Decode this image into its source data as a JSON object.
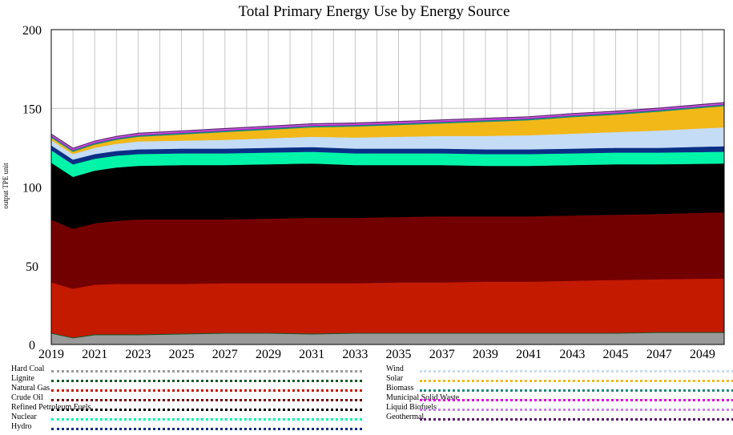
{
  "chart_data": {
    "type": "area",
    "stacked": true,
    "title": "Total Primary Energy Use by Energy Source",
    "ylabel": "output TPE unit",
    "xlabel": "",
    "ylim": [
      0,
      200
    ],
    "yticks": [
      0,
      50,
      100,
      150,
      200
    ],
    "xlim": [
      2019,
      2050
    ],
    "xticks": [
      2019,
      2021,
      2023,
      2025,
      2027,
      2029,
      2031,
      2033,
      2035,
      2037,
      2039,
      2041,
      2043,
      2045,
      2047,
      2049
    ],
    "grid": true,
    "x": [
      2019,
      2020,
      2021,
      2022,
      2023,
      2025,
      2027,
      2029,
      2031,
      2033,
      2035,
      2037,
      2039,
      2041,
      2043,
      2045,
      2047,
      2050
    ],
    "series": [
      {
        "name": "Hard Coal",
        "color": "#9a9a9a",
        "values": [
          7,
          4,
          6,
          6,
          6,
          6.5,
          7,
          7,
          6.5,
          7,
          7,
          7,
          7,
          7,
          7,
          7,
          7.5,
          7.5
        ]
      },
      {
        "name": "Lignite",
        "color": "#0c5a2a",
        "values": [
          0.5,
          0.5,
          0.5,
          0.5,
          0.5,
          0.5,
          0.5,
          0.5,
          0.5,
          0.5,
          0.5,
          0.5,
          0.5,
          0.5,
          0.5,
          0.5,
          0.5,
          0.5
        ]
      },
      {
        "name": "Natural Gas",
        "color": "#c41a00",
        "values": [
          32,
          31,
          31.5,
          32,
          32,
          31.5,
          31.5,
          31.5,
          32,
          31.5,
          32,
          32,
          32.5,
          32.5,
          33,
          33.5,
          33.5,
          34
        ]
      },
      {
        "name": "Crude Oil",
        "color": "#730000",
        "values": [
          40,
          38,
          39,
          40,
          41,
          41,
          40.5,
          41,
          41.5,
          41.5,
          41.5,
          42,
          41.5,
          41.5,
          41.5,
          41.5,
          41.5,
          42
        ]
      },
      {
        "name": "Refined Petroleum Fuels",
        "color": "#000000",
        "values": [
          36,
          33,
          33.5,
          34,
          34,
          34.5,
          34.5,
          34.5,
          34.5,
          33.5,
          33,
          32.5,
          32,
          32,
          32,
          32,
          31.5,
          31
        ]
      },
      {
        "name": "Nuclear",
        "color": "#00f5a8",
        "values": [
          8,
          8,
          7.5,
          7.5,
          7.5,
          7.5,
          7.5,
          7.5,
          7.5,
          7.5,
          7.5,
          7.5,
          7.5,
          7.5,
          7.5,
          7.5,
          7.5,
          7.5
        ]
      },
      {
        "name": "Hydro",
        "color": "#0a2f85",
        "values": [
          3,
          3,
          3,
          3,
          3,
          3,
          3,
          3,
          3,
          3,
          3,
          3,
          3,
          3,
          3,
          3,
          3,
          3.5
        ]
      },
      {
        "name": "Wind",
        "color": "#c4dcf6",
        "values": [
          3.5,
          3.5,
          4,
          4.5,
          5,
          5,
          5.5,
          6,
          6.5,
          7,
          7.5,
          8,
          8.5,
          9,
          9.5,
          10,
          11,
          12
        ]
      },
      {
        "name": "Solar",
        "color": "#f2b818",
        "values": [
          1.5,
          1.5,
          2,
          2.5,
          3,
          4,
          5,
          5.5,
          6,
          7,
          7.5,
          8,
          9,
          9.5,
          10.5,
          11,
          12,
          13.5
        ]
      },
      {
        "name": "Biomass",
        "color": "#1a8a7a",
        "values": [
          1,
          1,
          1,
          1,
          1,
          1,
          1,
          1,
          1,
          1,
          1,
          1,
          1,
          1,
          1,
          1,
          1,
          1
        ]
      },
      {
        "name": "Municipal Solid Waste",
        "color": "#e000e0",
        "values": [
          0.5,
          0.5,
          0.5,
          0.5,
          0.5,
          0.5,
          0.5,
          0.5,
          0.5,
          0.5,
          0.5,
          0.5,
          0.5,
          0.5,
          0.5,
          0.5,
          0.5,
          0.5
        ]
      },
      {
        "name": "Liquid Biofuels",
        "color": "#c080e0",
        "values": [
          0.5,
          0.5,
          0.5,
          0.5,
          0.5,
          0.5,
          0.5,
          0.5,
          0.5,
          0.5,
          0.5,
          0.5,
          0.5,
          0.5,
          0.5,
          0.5,
          0.5,
          0.5
        ]
      },
      {
        "name": "Geothermal",
        "color": "#5a1a6a",
        "values": [
          0.3,
          0.3,
          0.3,
          0.3,
          0.3,
          0.3,
          0.3,
          0.3,
          0.3,
          0.3,
          0.3,
          0.3,
          0.3,
          0.3,
          0.3,
          0.3,
          0.3,
          0.3
        ]
      }
    ]
  }
}
